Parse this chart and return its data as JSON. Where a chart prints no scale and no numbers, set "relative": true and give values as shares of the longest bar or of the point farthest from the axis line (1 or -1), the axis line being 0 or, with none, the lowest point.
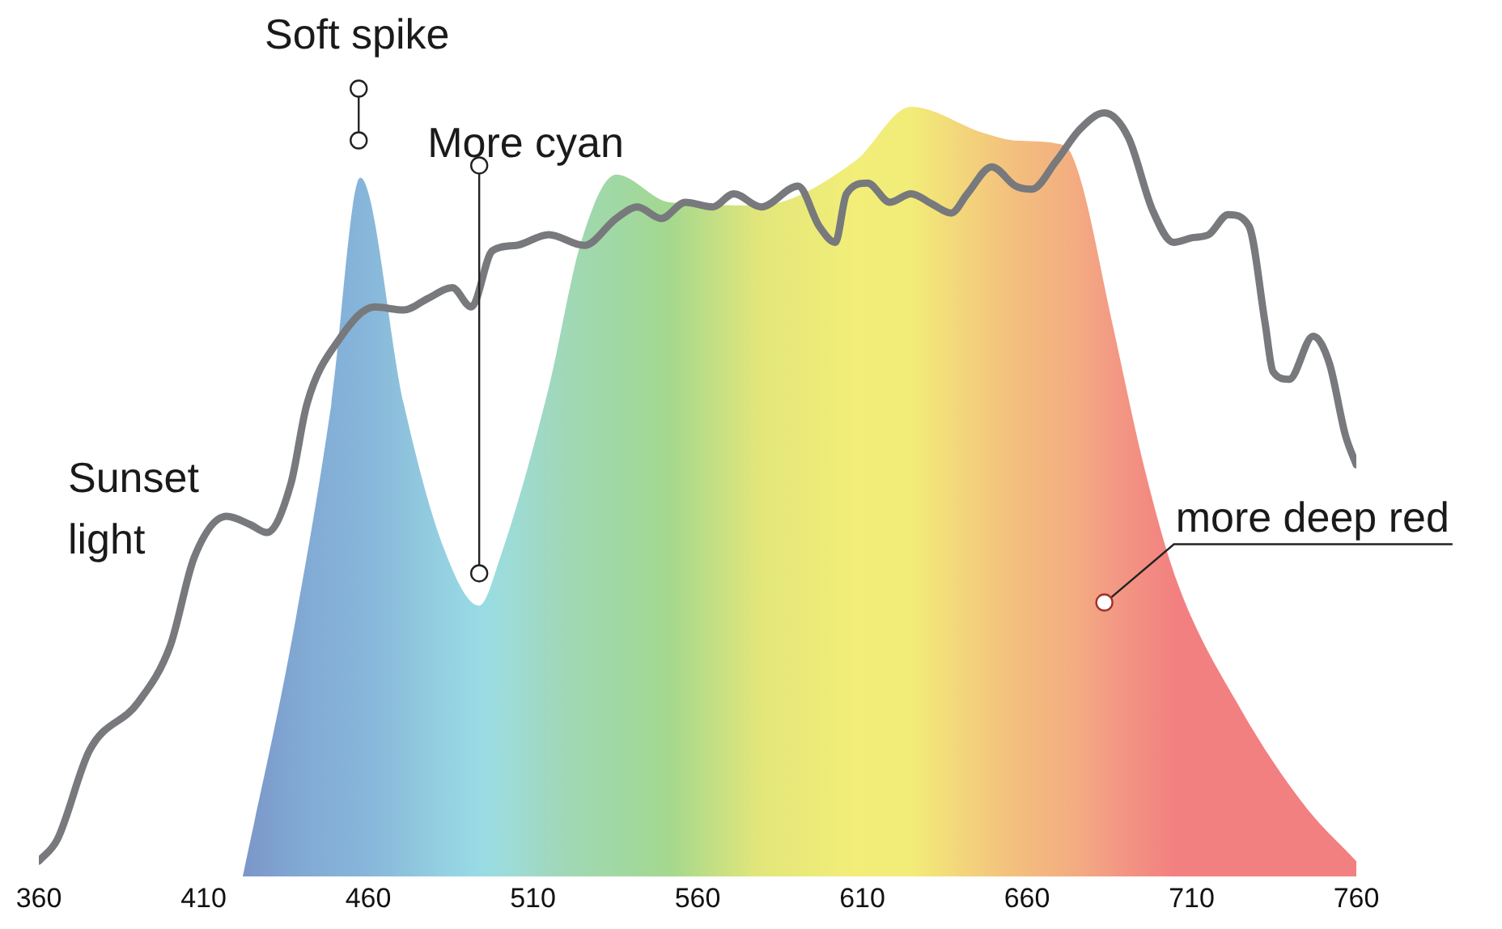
{
  "chart_data": {
    "type": "area",
    "relative": true,
    "tick_labels": "x",
    "grid": false,
    "xlim": [
      360,
      760
    ],
    "xticks": [
      360,
      410,
      460,
      510,
      560,
      610,
      660,
      710,
      760
    ],
    "series": [
      {
        "x": [
          421.9,
          436.5,
          448.8,
          457.6,
          470.8,
          483.0,
          493.7,
          500.1,
          514.8,
          524.6,
          535.3,
          551.5,
          578.4,
          607.7,
          624.8,
          646.8,
          656.6,
          671.3,
          676.1,
          685.9,
          695.7,
          705.5,
          725.1,
          744.7,
          760
        ],
        "values": [
          0,
          0.3,
          0.614,
          0.908,
          0.614,
          0.426,
          0.352,
          0.415,
          0.635,
          0.824,
          0.912,
          0.876,
          0.872,
          0.929,
          1,
          0.966,
          0.956,
          0.95,
          0.908,
          0.719,
          0.53,
          0.384,
          0.216,
          0.09,
          0.02
        ],
        "colors": [
          "#7b96c8",
          "#80a6d2",
          "#84b0d8",
          "#86b4da",
          "#8ec2dc",
          "#94d0e2",
          "#98dbe4",
          "#9cdcdc",
          "#a0d8c0",
          "#a0d8b0",
          "#a0d8a4",
          "#a4d88e",
          "#e2e67a",
          "#f2ee78",
          "#f2ec78",
          "#f3cc7c",
          "#f3be7e",
          "#f3b080",
          "#f3aa82",
          "#f39a84",
          "#f38c82",
          "#f28080",
          "#f28080",
          "#f28080",
          "#f28080"
        ]
      },
      {
        "type": "line",
        "name": "Sunset light",
        "color": "#77797c",
        "x": [
          360,
          365.6,
          375.4,
          390.1,
          399.9,
          407.2,
          417.0,
          424.3,
          429.2,
          436.5,
          441.4,
          451.2,
          462.0,
          470.8,
          478.1,
          485.5,
          491.3,
          497.7,
          505.0,
          514.8,
          525.6,
          535.3,
          541.7,
          549.0,
          556.3,
          564.6,
          571.0,
          579.3,
          590.5,
          596.9,
          601.8,
          605.2,
          611.6,
          618.4,
          624.8,
          631.1,
          637.0,
          641.9,
          649.3,
          656.6,
          661.5,
          668.8,
          676.1,
          683.5,
          690.8,
          698.1,
          704.5,
          710.3,
          715.2,
          721.1,
          727.4,
          732.3,
          734.7,
          739.6,
          746.9,
          751.8,
          756.7,
          760
        ],
        "values": [
          0.02,
          0.048,
          0.164,
          0.226,
          0.3,
          0.415,
          0.468,
          0.457,
          0.447,
          0.51,
          0.614,
          0.698,
          0.74,
          0.736,
          0.751,
          0.765,
          0.74,
          0.813,
          0.82,
          0.834,
          0.82,
          0.855,
          0.87,
          0.855,
          0.876,
          0.87,
          0.887,
          0.87,
          0.897,
          0.845,
          0.824,
          0.887,
          0.901,
          0.876,
          0.887,
          0.874,
          0.862,
          0.887,
          0.922,
          0.897,
          0.893,
          0.929,
          0.971,
          0.992,
          0.96,
          0.866,
          0.824,
          0.83,
          0.834,
          0.86,
          0.845,
          0.719,
          0.656,
          0.646,
          0.702,
          0.667,
          0.573,
          0.535
        ]
      }
    ],
    "annotations": [
      {
        "text": "Soft spike",
        "x": 457.6,
        "y": 0.908
      },
      {
        "text": "More cyan",
        "x": 493.7,
        "y": 0.394
      },
      {
        "text": "more deep red",
        "x": 683.5,
        "y": 0.356
      }
    ]
  }
}
